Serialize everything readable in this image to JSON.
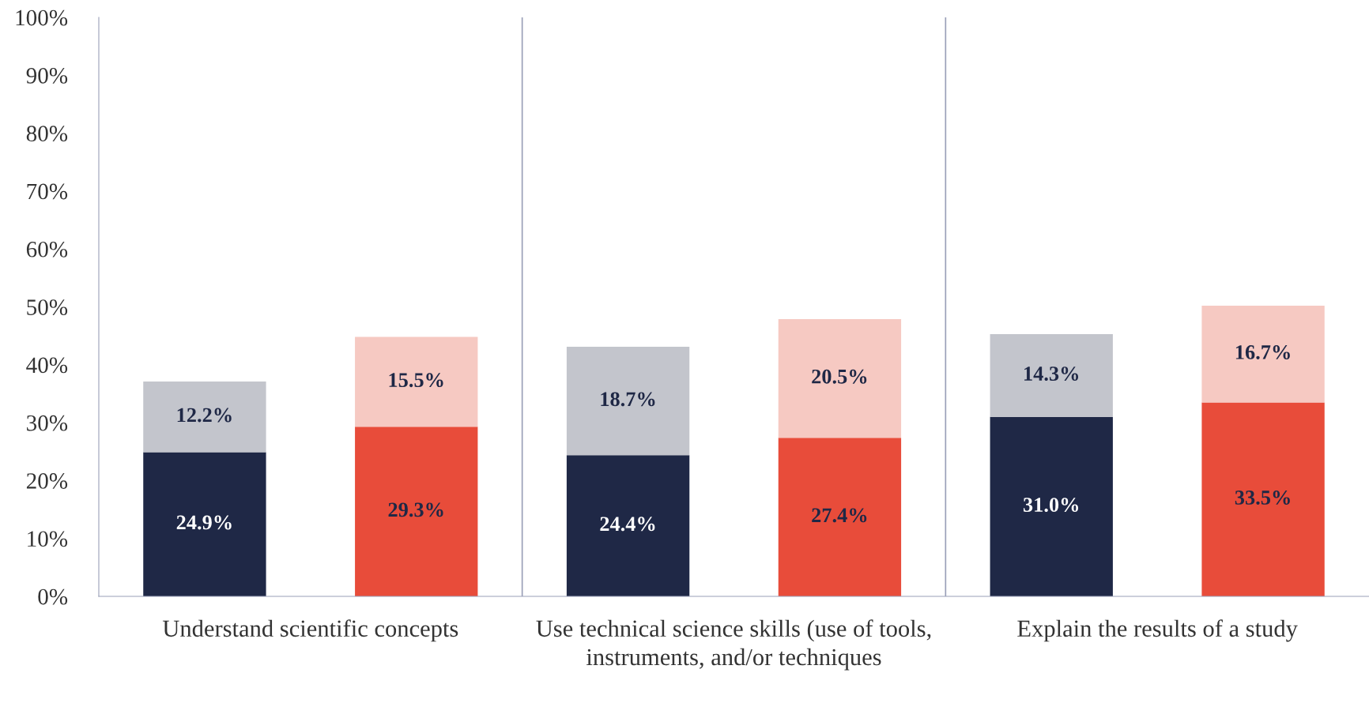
{
  "chart_data": {
    "type": "bar",
    "stacked": true,
    "categories": [
      null,
      null,
      null,
      null,
      null,
      null
    ],
    "series": [
      {
        "colors": [
          "#1f2846",
          "#e84c3a",
          "#1f2846",
          "#e84c3a",
          "#1f2846",
          "#e84c3a"
        ],
        "values": [
          24.9,
          29.3,
          24.4,
          27.4,
          31.0,
          33.5
        ],
        "value_labels": [
          "24.9%",
          "29.3%",
          "24.4%",
          "27.4%",
          "31.0%",
          "33.5%"
        ]
      },
      {
        "colors": [
          "#c3c5cc",
          "#f6c9c2",
          "#c3c5cc",
          "#f6c9c2",
          "#c3c5cc",
          "#f6c9c2"
        ],
        "values": [
          12.2,
          15.5,
          18.7,
          20.5,
          14.3,
          16.7
        ],
        "value_labels": [
          "12.2%",
          "15.5%",
          "18.7%",
          "20.5%",
          "14.3%",
          "16.7%"
        ]
      }
    ],
    "ylim": [
      0,
      100
    ],
    "yticks": [
      {
        "value": 0,
        "label": "0%"
      },
      {
        "value": 10,
        "label": "10%"
      },
      {
        "value": 20,
        "label": "20%"
      },
      {
        "value": 30,
        "label": "30%"
      },
      {
        "value": 40,
        "label": "40%"
      },
      {
        "value": 50,
        "label": "50%"
      },
      {
        "value": 60,
        "label": "60%"
      },
      {
        "value": 70,
        "label": "70%"
      },
      {
        "value": 80,
        "label": "80%"
      },
      {
        "value": 90,
        "label": "90%"
      },
      {
        "value": 100,
        "label": "100%"
      }
    ],
    "annotations": [
      "Understand scientific concepts",
      "Use technical science skills (use of tools, instruments, and/or techniques",
      "Explain the results of a study"
    ],
    "grid": false,
    "legend": false
  }
}
